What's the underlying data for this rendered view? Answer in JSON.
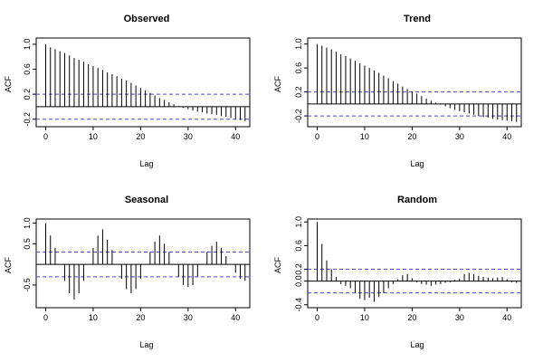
{
  "chart_data": [
    {
      "type": "bar",
      "title": "Observed",
      "xlabel": "Lag",
      "ylabel": "ACF",
      "xlim": [
        -2,
        43
      ],
      "ylim": [
        -0.32,
        1.1
      ],
      "x_ticks": [
        0,
        10,
        20,
        30,
        40
      ],
      "y_ticks": [
        -0.2,
        0.2,
        0.6,
        1.0
      ],
      "y_tick_labels": [
        "-0.2",
        "0.2",
        "0.6",
        "1.0"
      ],
      "ci": 0.2,
      "lags": [
        0,
        1,
        2,
        3,
        4,
        5,
        6,
        7,
        8,
        9,
        10,
        11,
        12,
        13,
        14,
        15,
        16,
        17,
        18,
        19,
        20,
        21,
        22,
        23,
        24,
        25,
        26,
        27,
        28,
        29,
        30,
        31,
        32,
        33,
        34,
        35,
        36,
        37,
        38,
        39,
        40,
        41,
        42
      ],
      "values": [
        1.0,
        0.95,
        0.92,
        0.89,
        0.86,
        0.82,
        0.78,
        0.75,
        0.72,
        0.68,
        0.65,
        0.62,
        0.59,
        0.55,
        0.52,
        0.49,
        0.45,
        0.42,
        0.38,
        0.34,
        0.3,
        0.26,
        0.22,
        0.18,
        0.14,
        0.11,
        0.07,
        0.04,
        0.01,
        -0.02,
        -0.04,
        -0.06,
        -0.08,
        -0.09,
        -0.11,
        -0.12,
        -0.13,
        -0.15,
        -0.16,
        -0.18,
        -0.2,
        -0.21,
        -0.23
      ]
    },
    {
      "type": "bar",
      "title": "Trend",
      "xlabel": "Lag",
      "ylabel": "ACF",
      "xlim": [
        -2,
        43
      ],
      "ylim": [
        -0.38,
        1.1
      ],
      "x_ticks": [
        0,
        10,
        20,
        30,
        40
      ],
      "y_ticks": [
        -0.2,
        0.2,
        0.6,
        1.0
      ],
      "y_tick_labels": [
        "-0.2",
        "0.2",
        "0.6",
        "1.0"
      ],
      "ci": 0.2,
      "lags": [
        0,
        1,
        2,
        3,
        4,
        5,
        6,
        7,
        8,
        9,
        10,
        11,
        12,
        13,
        14,
        15,
        16,
        17,
        18,
        19,
        20,
        21,
        22,
        23,
        24,
        25,
        26,
        27,
        28,
        29,
        30,
        31,
        32,
        33,
        34,
        35,
        36,
        37,
        38,
        39,
        40,
        41,
        42
      ],
      "values": [
        1.0,
        0.97,
        0.94,
        0.91,
        0.87,
        0.83,
        0.8,
        0.76,
        0.72,
        0.68,
        0.64,
        0.6,
        0.56,
        0.52,
        0.47,
        0.43,
        0.38,
        0.34,
        0.29,
        0.25,
        0.21,
        0.17,
        0.13,
        0.09,
        0.05,
        0.02,
        -0.01,
        -0.04,
        -0.07,
        -0.1,
        -0.12,
        -0.14,
        -0.16,
        -0.18,
        -0.2,
        -0.22,
        -0.23,
        -0.25,
        -0.26,
        -0.27,
        -0.28,
        -0.29,
        -0.3
      ]
    },
    {
      "type": "bar",
      "title": "Seasonal",
      "xlabel": "Lag",
      "ylabel": "ACF",
      "xlim": [
        -2,
        43
      ],
      "ylim": [
        -1.05,
        1.1
      ],
      "x_ticks": [
        0,
        10,
        20,
        30,
        40
      ],
      "y_ticks": [
        -0.5,
        0.5,
        1.0
      ],
      "y_tick_labels": [
        "-0.5",
        "0.5",
        "1.0"
      ],
      "ci": 0.3,
      "lags": [
        0,
        1,
        2,
        3,
        4,
        5,
        6,
        7,
        8,
        9,
        10,
        11,
        12,
        13,
        14,
        15,
        16,
        17,
        18,
        19,
        20,
        21,
        22,
        23,
        24,
        25,
        26,
        27,
        28,
        29,
        30,
        31,
        32,
        33,
        34,
        35,
        36,
        37,
        38,
        39,
        40,
        41,
        42
      ],
      "values": [
        1.0,
        0.7,
        0.4,
        0.0,
        -0.4,
        -0.7,
        -0.85,
        -0.7,
        -0.4,
        0.0,
        0.4,
        0.7,
        0.85,
        0.6,
        0.35,
        0.0,
        -0.35,
        -0.6,
        -0.7,
        -0.6,
        -0.35,
        0.0,
        0.3,
        0.55,
        0.7,
        0.5,
        0.3,
        0.0,
        -0.3,
        -0.5,
        -0.55,
        -0.5,
        -0.3,
        0.0,
        0.3,
        0.45,
        0.55,
        0.4,
        0.2,
        0.0,
        -0.2,
        -0.35,
        -0.4
      ]
    },
    {
      "type": "bar",
      "title": "Random",
      "xlabel": "Lag",
      "ylabel": "ACF",
      "xlim": [
        -2,
        43
      ],
      "ylim": [
        -0.45,
        1.05
      ],
      "x_ticks": [
        0,
        10,
        20,
        30,
        40
      ],
      "y_ticks": [
        -0.4,
        0.0,
        0.2,
        0.6,
        1.0
      ],
      "y_tick_labels": [
        "-0.4",
        "0.0",
        "0.2",
        "0.6",
        "1.0"
      ],
      "ci": 0.2,
      "lags": [
        0,
        1,
        2,
        3,
        4,
        5,
        6,
        7,
        8,
        9,
        10,
        11,
        12,
        13,
        14,
        15,
        16,
        17,
        18,
        19,
        20,
        21,
        22,
        23,
        24,
        25,
        26,
        27,
        28,
        29,
        30,
        31,
        32,
        33,
        34,
        35,
        36,
        37,
        38,
        39,
        40,
        41,
        42
      ],
      "values": [
        1.0,
        0.63,
        0.35,
        0.2,
        0.07,
        -0.05,
        -0.08,
        -0.12,
        -0.2,
        -0.3,
        -0.32,
        -0.28,
        -0.35,
        -0.27,
        -0.2,
        -0.12,
        -0.05,
        0.03,
        0.1,
        0.12,
        0.05,
        -0.02,
        -0.05,
        -0.06,
        -0.08,
        -0.06,
        -0.05,
        -0.03,
        -0.02,
        0.02,
        0.04,
        0.12,
        0.14,
        0.12,
        0.09,
        0.07,
        0.06,
        0.05,
        0.06,
        0.07,
        0.03,
        -0.02,
        -0.03
      ]
    }
  ]
}
